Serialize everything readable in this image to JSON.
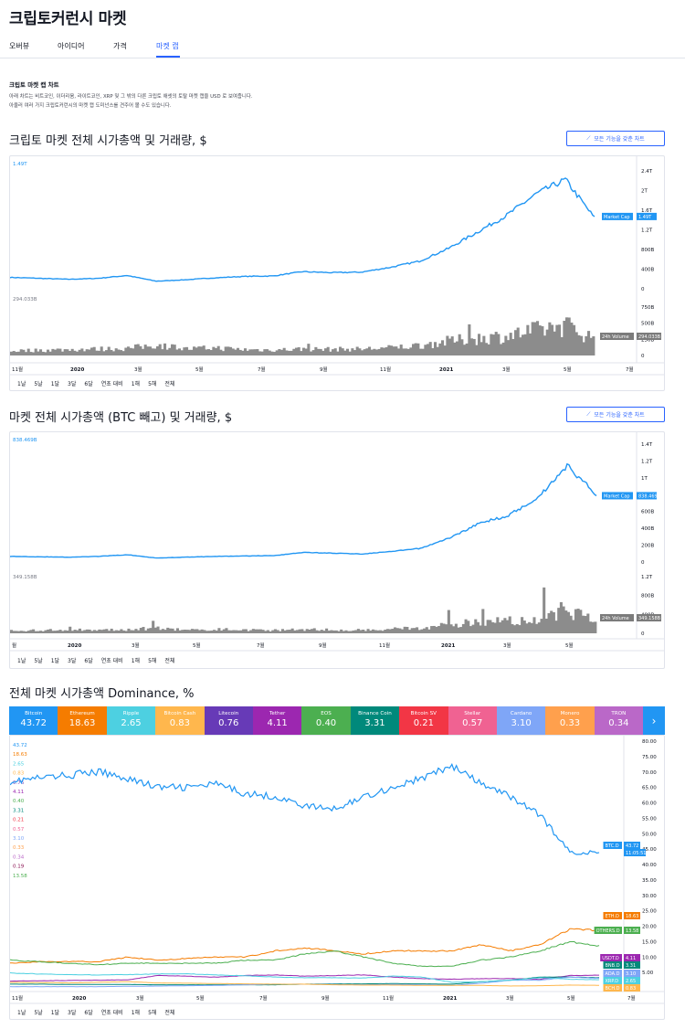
{
  "page": {
    "title": "크립토커런시 마켓",
    "tabs": [
      {
        "label": "오버뷰",
        "active": false
      },
      {
        "label": "아이디어",
        "active": false
      },
      {
        "label": "가격",
        "active": false
      },
      {
        "label": "마켓 캡",
        "active": true
      }
    ]
  },
  "intro": {
    "title": "크립토 마켓 캡 차트",
    "lines": [
      "아래 차트는 비트코인, 이더리움, 라이트코인, XRP 및 그 밖의 다른 크립토 애셋의 토탈 마켓 캡을 USD 로 보여줍니다.",
      "아울러 여러 가지 크립토커런시의 마켓 캡 도미넌스를 견주어 볼 수도 있습니다."
    ]
  },
  "advanced_button_label": "모든 기능을 갖춘 차트",
  "ranges": [
    "1날",
    "5날",
    "1달",
    "3달",
    "6달",
    "연초 대비",
    "1해",
    "5해",
    "전체"
  ],
  "colors": {
    "accent": "#2962ff",
    "line": "#2196f3",
    "volume": "#8c8c8c",
    "grid": "#f0f3fa"
  },
  "chart_data": [
    {
      "type": "line",
      "title": "크립토 마켓 전체 시가총액 및 거래량, $",
      "x": [
        "2019-10",
        "2019-11",
        "2019-12",
        "2020-01",
        "2020-02",
        "2020-03",
        "2020-04",
        "2020-05",
        "2020-06",
        "2020-07",
        "2020-08",
        "2020-09",
        "2020-10",
        "2020-11",
        "2020-12",
        "2021-01",
        "2021-02",
        "2021-03",
        "2021-04",
        "2021-05",
        "2021-06"
      ],
      "x_tick_labels": [
        "11월",
        "2020",
        "3월",
        "5월",
        "7월",
        "9월",
        "11월",
        "2021",
        "3월",
        "5월",
        "7월"
      ],
      "y_tick_labels": [
        "2.4T",
        "2T",
        "1.6T",
        "1.2T",
        "800B",
        "400B",
        "0"
      ],
      "ylim": [
        0,
        2.6
      ],
      "series": [
        {
          "name": "Market Cap",
          "unit": "T",
          "values": [
            0.24,
            0.22,
            0.2,
            0.22,
            0.28,
            0.16,
            0.19,
            0.23,
            0.26,
            0.27,
            0.36,
            0.34,
            0.35,
            0.45,
            0.58,
            0.85,
            1.2,
            1.55,
            2.0,
            2.3,
            1.49
          ]
        }
      ],
      "last_label": "1.49T",
      "top_value_label": "1.49T",
      "volume": {
        "name": "24h Volume",
        "last_label": "294.033B",
        "top_value_label": "294.033B",
        "y_tick_labels": [
          "750B",
          "500B",
          "250B",
          "0"
        ],
        "ylim": [
          0,
          900
        ],
        "values": [
          80,
          90,
          100,
          110,
          120,
          180,
          110,
          130,
          100,
          95,
          110,
          105,
          110,
          130,
          170,
          240,
          290,
          330,
          420,
          520,
          294
        ]
      }
    },
    {
      "type": "line",
      "title": "마켓 전체 시가총액 (BTC 빼고) 및 거래량, $",
      "x": [
        "2019-10",
        "2019-11",
        "2019-12",
        "2020-01",
        "2020-02",
        "2020-03",
        "2020-04",
        "2020-05",
        "2020-06",
        "2020-07",
        "2020-08",
        "2020-09",
        "2020-10",
        "2020-11",
        "2020-12",
        "2021-01",
        "2021-02",
        "2021-03",
        "2021-04",
        "2021-05",
        "2021-06"
      ],
      "x_tick_labels": [
        "월",
        "2020",
        "3월",
        "5월",
        "7월",
        "9월",
        "11월",
        "2021",
        "3월",
        "5월"
      ],
      "y_tick_labels": [
        "1.4T",
        "1.2T",
        "1T",
        "800B",
        "600B",
        "400B",
        "200B",
        "0"
      ],
      "ylim": [
        0,
        1.5
      ],
      "series": [
        {
          "name": "Market Cap",
          "unit": "T",
          "values": [
            0.07,
            0.065,
            0.06,
            0.07,
            0.09,
            0.05,
            0.06,
            0.07,
            0.075,
            0.08,
            0.12,
            0.11,
            0.1,
            0.13,
            0.17,
            0.3,
            0.48,
            0.58,
            0.8,
            1.2,
            0.84
          ]
        }
      ],
      "last_label": "838.469B",
      "top_value_label": "838.469B",
      "volume": {
        "name": "24h Volume",
        "last_label": "349.158B",
        "top_value_label": "349.158B",
        "y_tick_labels": [
          "1.2T",
          "800B",
          "400B",
          "0"
        ],
        "ylim": [
          0,
          1.4
        ],
        "values": [
          0.07,
          0.08,
          0.09,
          0.09,
          0.1,
          0.14,
          0.09,
          0.11,
          0.09,
          0.08,
          0.1,
          0.09,
          0.09,
          0.11,
          0.14,
          0.22,
          0.3,
          0.33,
          0.4,
          0.55,
          0.35
        ]
      }
    },
    {
      "type": "line",
      "title": "전체 마켓 시가총액 Dominance, %",
      "x": [
        "2019-10",
        "2019-11",
        "2019-12",
        "2020-01",
        "2020-02",
        "2020-03",
        "2020-04",
        "2020-05",
        "2020-06",
        "2020-07",
        "2020-08",
        "2020-09",
        "2020-10",
        "2020-11",
        "2020-12",
        "2021-01",
        "2021-02",
        "2021-03",
        "2021-04",
        "2021-05",
        "2021-06"
      ],
      "x_tick_labels": [
        "11월",
        "2020",
        "3월",
        "5월",
        "7월",
        "9월",
        "11월",
        "2021",
        "3월",
        "5월",
        "7월"
      ],
      "y_tick_labels": [
        "80.00",
        "75.00",
        "70.00",
        "65.00",
        "60.00",
        "55.00",
        "50.00",
        "45.00",
        "40.00",
        "35.00",
        "30.00",
        "25.00",
        "20.00",
        "15.00",
        "10.00",
        "5.00"
      ],
      "ylim": [
        0,
        80
      ],
      "legend": [
        {
          "name": "Bitcoin",
          "value": "43.72",
          "color": "#2196f3"
        },
        {
          "name": "Ethereum",
          "value": "18.63",
          "color": "#f57c00"
        },
        {
          "name": "Ripple",
          "value": "2.65",
          "color": "#4dd0e1"
        },
        {
          "name": "Bitcoin Cash",
          "value": "0.83",
          "color": "#ffb74d"
        },
        {
          "name": "Litecoin",
          "value": "0.76",
          "color": "#673ab7"
        },
        {
          "name": "Tether",
          "value": "4.11",
          "color": "#9c27b0"
        },
        {
          "name": "EOS",
          "value": "0.40",
          "color": "#4caf50"
        },
        {
          "name": "Binance Coin",
          "value": "3.31",
          "color": "#00897b"
        },
        {
          "name": "Bitcoin SV",
          "value": "0.21",
          "color": "#f23645"
        },
        {
          "name": "Stellar",
          "value": "0.57",
          "color": "#f06292"
        },
        {
          "name": "Cardano",
          "value": "3.10",
          "color": "#7fa6f7"
        },
        {
          "name": "Monero",
          "value": "0.33",
          "color": "#ffa04d"
        },
        {
          "name": "TRON",
          "value": "0.34",
          "color": "#ba68c8"
        }
      ],
      "left_values": [
        {
          "value": "43.72",
          "color": "#2196f3"
        },
        {
          "value": "18.63",
          "color": "#f57c00"
        },
        {
          "value": "2.65",
          "color": "#4dd0e1"
        },
        {
          "value": "0.83",
          "color": "#ffb74d"
        },
        {
          "value": "0.76",
          "color": "#673ab7"
        },
        {
          "value": "4.11",
          "color": "#9c27b0"
        },
        {
          "value": "0.40",
          "color": "#4caf50"
        },
        {
          "value": "3.31",
          "color": "#00897b"
        },
        {
          "value": "0.21",
          "color": "#f23645"
        },
        {
          "value": "0.57",
          "color": "#f06292"
        },
        {
          "value": "3.10",
          "color": "#7fa6f7"
        },
        {
          "value": "0.33",
          "color": "#ffa04d"
        },
        {
          "value": "0.34",
          "color": "#ba68c8"
        },
        {
          "value": "0.19",
          "color": "#880e4f"
        },
        {
          "value": "13.58",
          "color": "#4caf50"
        }
      ],
      "series": [
        {
          "name": "BTC.D",
          "color": "#2196f3",
          "values": [
            67,
            68,
            69,
            70,
            68,
            65,
            65,
            66,
            63,
            62,
            59,
            58,
            62,
            65,
            68,
            72,
            66,
            62,
            56,
            44,
            43.72
          ]
        },
        {
          "name": "ETH.D",
          "color": "#f57c00",
          "values": [
            8,
            8.5,
            8.5,
            8.5,
            10,
            9,
            9.5,
            10,
            10,
            12,
            13,
            12,
            11,
            12,
            12,
            12,
            14,
            12,
            14,
            19,
            18.63
          ]
        },
        {
          "name": "OTHERS.D",
          "color": "#4caf50",
          "values": [
            9,
            8.5,
            8,
            7.5,
            8,
            8,
            8,
            8,
            9,
            9,
            11,
            12,
            10,
            8,
            7,
            7,
            9,
            10,
            12,
            15,
            13.58
          ]
        },
        {
          "name": "USDT.D",
          "color": "#9c27b0",
          "values": [
            2.2,
            2.3,
            2.4,
            2.5,
            2.6,
            4,
            3.8,
            3.5,
            4,
            4.2,
            3.8,
            4,
            4.2,
            3.5,
            3,
            2.8,
            3,
            3,
            2.8,
            4,
            4.11
          ]
        },
        {
          "name": "BNB.D",
          "color": "#00897b",
          "values": [
            1.2,
            1.2,
            1.1,
            1.1,
            1.1,
            1,
            1,
            1,
            1,
            1,
            1.2,
            1.3,
            1.3,
            1.4,
            1.3,
            1.2,
            2,
            2.5,
            3.5,
            3.5,
            3.31
          ]
        },
        {
          "name": "ADA.D",
          "color": "#7fa6f7",
          "values": [
            0.4,
            0.4,
            0.4,
            0.4,
            0.5,
            0.6,
            0.7,
            0.8,
            1,
            1.2,
            1.2,
            1.1,
            1,
            1.1,
            1,
            0.8,
            1.5,
            2.5,
            2.5,
            3.5,
            3.1
          ]
        },
        {
          "name": "XRP.D",
          "color": "#4dd0e1",
          "values": [
            4.8,
            4.5,
            4.3,
            4.2,
            4.3,
            4.5,
            4.6,
            4.2,
            3.9,
            3.5,
            3.3,
            3.3,
            3.2,
            3.8,
            3.5,
            1.8,
            2,
            2.5,
            3.3,
            2.8,
            2.65
          ]
        },
        {
          "name": "BCH.D",
          "color": "#ffb74d",
          "values": [
            1.8,
            1.7,
            1.6,
            1.8,
            2,
            1.6,
            1.5,
            1.4,
            1.3,
            1.2,
            1.2,
            1,
            0.9,
            0.9,
            0.8,
            0.8,
            0.8,
            0.6,
            0.7,
            0.9,
            0.83
          ]
        }
      ],
      "btc_time_label": "11:05:51"
    }
  ]
}
